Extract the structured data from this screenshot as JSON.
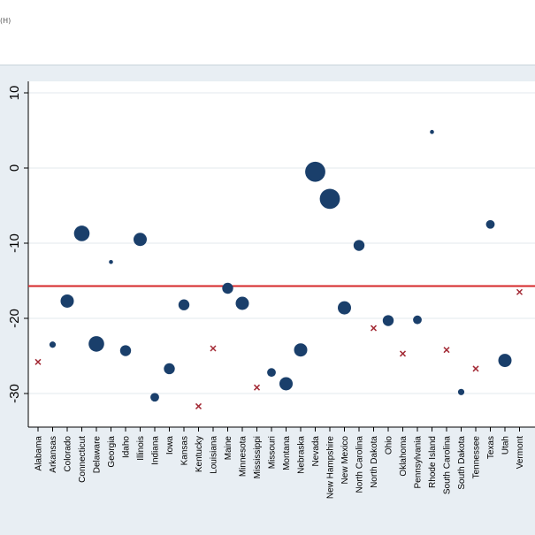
{
  "window": {
    "menu_fragment": "(H)"
  },
  "chart_data": {
    "type": "scatter",
    "title": "",
    "xlabel": "",
    "ylabel": "",
    "ylim": [
      -34.5,
      11.0
    ],
    "yticks": [
      10,
      0,
      -10,
      -20,
      -30
    ],
    "ytick_labels": [
      "10",
      "0",
      "-10",
      "-20",
      "-30"
    ],
    "reference_line": {
      "y": -15.7,
      "color": "#d62728"
    },
    "grid": true,
    "colors": {
      "circle": "#1a3f6b",
      "cross": "#a32a35",
      "background": "#ffffff",
      "outer": "#e8eef3"
    },
    "categories": [
      "Alabama",
      "Arkansas",
      "Colorado",
      "Connecticut",
      "Delaware",
      "Georgia",
      "Idaho",
      "Illinois",
      "Indiana",
      "Iowa",
      "Kansas",
      "Kentucky",
      "Louisiana",
      "Maine",
      "Minnesota",
      "Mississippi",
      "Missouri",
      "Montana",
      "Nebraska",
      "Nevada",
      "New Hampshire",
      "New Mexico",
      "North Carolina",
      "North Dakota",
      "Ohio",
      "Oklahoma",
      "Pennsylvania",
      "Rhode Island",
      "South Carolina",
      "South Dakota",
      "Tennessee",
      "Texas",
      "Utah",
      "Vermont"
    ],
    "points": [
      {
        "state": "Alabama",
        "y": -25.8,
        "marker": "x",
        "size": 2
      },
      {
        "state": "Arkansas",
        "y": -23.5,
        "marker": "o",
        "size": 2
      },
      {
        "state": "Colorado",
        "y": -17.7,
        "marker": "o",
        "size": 5
      },
      {
        "state": "Connecticut",
        "y": -8.7,
        "marker": "o",
        "size": 6
      },
      {
        "state": "Delaware",
        "y": -23.4,
        "marker": "o",
        "size": 6
      },
      {
        "state": "Georgia",
        "y": -12.5,
        "marker": "o",
        "size": 1
      },
      {
        "state": "Idaho",
        "y": -24.3,
        "marker": "o",
        "size": 4
      },
      {
        "state": "Illinois",
        "y": -9.5,
        "marker": "o",
        "size": 5
      },
      {
        "state": "Indiana",
        "y": -30.5,
        "marker": "o",
        "size": 3
      },
      {
        "state": "Iowa",
        "y": -26.7,
        "marker": "o",
        "size": 4
      },
      {
        "state": "Kansas",
        "y": -18.2,
        "marker": "o",
        "size": 4
      },
      {
        "state": "Kentucky",
        "y": -31.7,
        "marker": "x",
        "size": 2
      },
      {
        "state": "Louisiana",
        "y": -24.0,
        "marker": "x",
        "size": 2
      },
      {
        "state": "Maine",
        "y": -16.0,
        "marker": "o",
        "size": 4
      },
      {
        "state": "Minnesota",
        "y": -18.0,
        "marker": "o",
        "size": 5
      },
      {
        "state": "Mississippi",
        "y": -29.2,
        "marker": "x",
        "size": 2
      },
      {
        "state": "Missouri",
        "y": -27.2,
        "marker": "o",
        "size": 3
      },
      {
        "state": "Montana",
        "y": -28.7,
        "marker": "o",
        "size": 5
      },
      {
        "state": "Nebraska",
        "y": -24.2,
        "marker": "o",
        "size": 5
      },
      {
        "state": "Nevada",
        "y": -0.5,
        "marker": "o",
        "size": 8
      },
      {
        "state": "New Hampshire",
        "y": -4.1,
        "marker": "o",
        "size": 8
      },
      {
        "state": "New Mexico",
        "y": -18.6,
        "marker": "o",
        "size": 5
      },
      {
        "state": "North Carolina",
        "y": -10.3,
        "marker": "o",
        "size": 4
      },
      {
        "state": "North Dakota",
        "y": -21.3,
        "marker": "x",
        "size": 2
      },
      {
        "state": "Ohio",
        "y": -20.3,
        "marker": "o",
        "size": 4
      },
      {
        "state": "Oklahoma",
        "y": -24.7,
        "marker": "x",
        "size": 2
      },
      {
        "state": "Pennsylvania",
        "y": -20.2,
        "marker": "o",
        "size": 3
      },
      {
        "state": "Rhode Island",
        "y": 4.8,
        "marker": "o",
        "size": 1
      },
      {
        "state": "South Carolina",
        "y": -24.2,
        "marker": "x",
        "size": 2
      },
      {
        "state": "South Dakota",
        "y": -29.8,
        "marker": "o",
        "size": 2
      },
      {
        "state": "Tennessee",
        "y": -26.7,
        "marker": "x",
        "size": 2
      },
      {
        "state": "Texas",
        "y": -7.5,
        "marker": "o",
        "size": 3
      },
      {
        "state": "Utah",
        "y": -25.6,
        "marker": "o",
        "size": 5
      },
      {
        "state": "Vermont",
        "y": -16.5,
        "marker": "x",
        "size": 2
      }
    ]
  }
}
